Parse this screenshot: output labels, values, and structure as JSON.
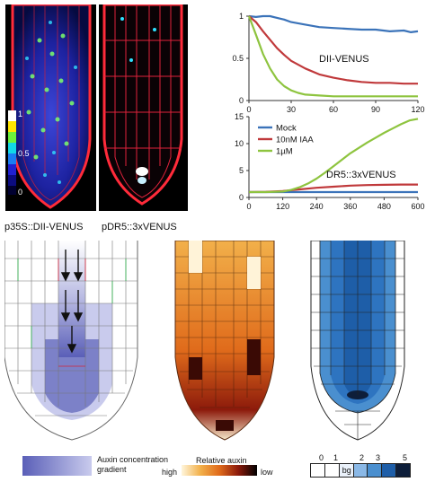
{
  "panel_a": {
    "label_left": "p35S::DII-VENUS",
    "label_right": "pDR5::3xVENUS",
    "colorbar_ticks": [
      "1",
      "0.5",
      "0"
    ]
  },
  "chart_data": [
    {
      "type": "line",
      "title": "",
      "annotation": "DII-VENUS",
      "xlabel": "",
      "ylabel": "",
      "xlim": [
        0,
        120
      ],
      "ylim": [
        0,
        1
      ],
      "x_ticks": [
        "0",
        "30",
        "60",
        "90",
        "120"
      ],
      "y_ticks": [
        "0",
        "0.5",
        "1"
      ],
      "series": [
        {
          "name": "Mock",
          "color": "#3b73b9",
          "x": [
            0,
            5,
            10,
            15,
            20,
            25,
            30,
            40,
            50,
            60,
            70,
            80,
            90,
            100,
            110,
            115,
            120
          ],
          "y": [
            1.0,
            0.99,
            1.0,
            1.0,
            0.98,
            0.96,
            0.93,
            0.9,
            0.87,
            0.86,
            0.85,
            0.84,
            0.84,
            0.82,
            0.83,
            0.81,
            0.82
          ]
        },
        {
          "name": "10nM IAA",
          "color": "#c0393b",
          "x": [
            0,
            5,
            10,
            15,
            20,
            25,
            30,
            40,
            50,
            60,
            70,
            80,
            90,
            100,
            110,
            120
          ],
          "y": [
            1.0,
            0.93,
            0.82,
            0.72,
            0.62,
            0.54,
            0.47,
            0.38,
            0.31,
            0.27,
            0.24,
            0.22,
            0.21,
            0.21,
            0.2,
            0.2
          ]
        },
        {
          "name": "1µM",
          "color": "#8ec43f",
          "x": [
            0,
            5,
            10,
            15,
            20,
            25,
            30,
            35,
            40,
            50,
            60,
            80,
            100,
            120
          ],
          "y": [
            1.0,
            0.78,
            0.55,
            0.38,
            0.25,
            0.17,
            0.12,
            0.09,
            0.07,
            0.06,
            0.05,
            0.05,
            0.05,
            0.05
          ]
        }
      ]
    },
    {
      "type": "line",
      "title": "",
      "annotation": "DR5::3xVENUS",
      "xlabel": "",
      "ylabel": "",
      "xlim": [
        0,
        600
      ],
      "ylim": [
        0,
        15
      ],
      "x_ticks": [
        "0",
        "120",
        "240",
        "360",
        "480",
        "600"
      ],
      "y_ticks": [
        "0",
        "5",
        "10",
        "15"
      ],
      "legend_position": "upper-left",
      "series": [
        {
          "name": "Mock",
          "color": "#3b73b9",
          "x": [
            0,
            120,
            240,
            360,
            480,
            600
          ],
          "y": [
            1.0,
            1.0,
            1.0,
            1.0,
            1.0,
            1.0
          ]
        },
        {
          "name": "10nM IAA",
          "color": "#c0393b",
          "x": [
            0,
            60,
            120,
            180,
            240,
            300,
            360,
            420,
            480,
            540,
            600
          ],
          "y": [
            1.0,
            1.05,
            1.2,
            1.5,
            1.8,
            2.0,
            2.2,
            2.3,
            2.35,
            2.4,
            2.4
          ]
        },
        {
          "name": "1µM",
          "color": "#8ec43f",
          "x": [
            0,
            60,
            120,
            150,
            180,
            210,
            240,
            270,
            300,
            330,
            360,
            390,
            420,
            450,
            480,
            510,
            540,
            570,
            600
          ],
          "y": [
            1.0,
            1.0,
            1.1,
            1.4,
            1.9,
            2.6,
            3.5,
            4.6,
            5.8,
            7.0,
            8.2,
            9.2,
            10.2,
            11.1,
            12.0,
            12.8,
            13.6,
            14.3,
            14.6
          ]
        }
      ]
    }
  ],
  "legend_blue": {
    "label": "Auxin concentration\ngradient"
  },
  "legend_heat": {
    "title": "Relative auxin",
    "high": "high",
    "low": "low"
  },
  "legend_scale": {
    "ticks": [
      "0",
      "1",
      "2",
      "3",
      "5"
    ],
    "bg_label": "bg"
  }
}
